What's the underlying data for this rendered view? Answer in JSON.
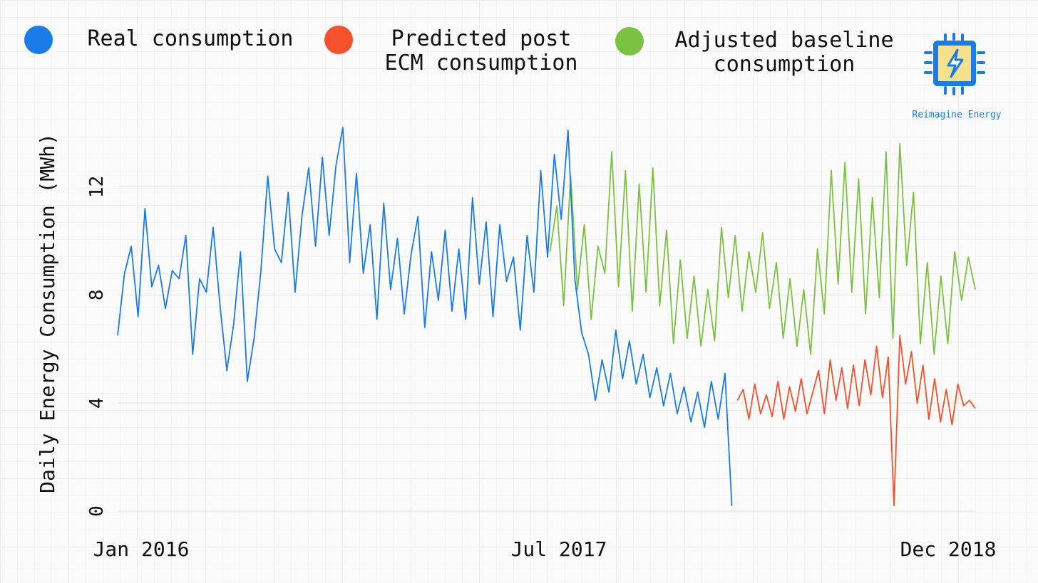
{
  "colors": {
    "real": "#1a7ce6",
    "predicted": "#f4512c",
    "adjusted": "#7cc242",
    "logo_blue": "#1a7ce6",
    "logo_yellow": "#f7e08a"
  },
  "logo": {
    "icon": "lightning-chip-icon",
    "text": "Reimagine Energy"
  },
  "chart_data": {
    "type": "line",
    "title": "",
    "ylabel": "Daily Energy Consumption (MWh)",
    "xlabel": "",
    "ylim": [
      0,
      14.7
    ],
    "yticks": [
      0,
      4,
      8,
      12
    ],
    "xtick_labels": [
      "Jan 2016",
      "Jul 2017",
      "Dec 2018"
    ],
    "grid": true,
    "legend": "top",
    "x_axis": "time (weekly samples, Jan 2016 – Dec 2018)",
    "series": [
      {
        "name": "Real consumption",
        "x_start": "2016-01-01",
        "x_end": "2018-02-16",
        "values": [
          6.5,
          8.8,
          9.8,
          7.2,
          11.2,
          8.3,
          9.1,
          7.5,
          8.9,
          8.6,
          10.2,
          5.8,
          8.6,
          8.1,
          10.5,
          7.6,
          5.2,
          6.9,
          9.6,
          4.8,
          6.4,
          8.9,
          12.4,
          9.7,
          9.2,
          11.8,
          8.1,
          10.9,
          12.7,
          9.8,
          13.1,
          10.2,
          12.8,
          14.2,
          9.2,
          12.5,
          8.8,
          10.6,
          7.1,
          11.4,
          8.2,
          10.1,
          7.3,
          9.5,
          10.9,
          6.8,
          9.6,
          7.8,
          10.4,
          7.4,
          9.7,
          7.1,
          11.6,
          8.4,
          10.7,
          7.2,
          10.6,
          8.5,
          9.4,
          6.7,
          10.2,
          8.1,
          12.6,
          9.4,
          13.2,
          10.8,
          14.1,
          8.6,
          6.6,
          5.8,
          4.1,
          5.6,
          4.4,
          6.7,
          4.9,
          6.3,
          4.7,
          5.8,
          4.2,
          5.3,
          3.9,
          5.1,
          3.6,
          4.6,
          3.3,
          4.4,
          3.1,
          4.8,
          3.4,
          5.1,
          0.2
        ]
      },
      {
        "name": "Predicted post ECM consumption",
        "x_start": "2018-02-23",
        "x_end": "2018-12-21",
        "values": [
          4.1,
          4.5,
          3.4,
          4.7,
          3.6,
          4.3,
          3.5,
          4.8,
          3.4,
          4.6,
          3.7,
          4.9,
          3.6,
          4.4,
          5.2,
          3.6,
          5.6,
          4.1,
          5.3,
          3.8,
          5.4,
          3.9,
          5.6,
          4.3,
          6.1,
          4.2,
          5.7,
          0.2,
          6.5,
          4.7,
          5.9,
          4.0,
          5.4,
          3.4,
          4.9,
          3.3,
          4.5,
          3.2,
          4.7,
          3.9,
          4.1,
          3.8
        ]
      },
      {
        "name": "Adjusted baseline consumption",
        "x_start": "2017-07-01",
        "x_end": "2018-12-21",
        "values": [
          9.6,
          11.3,
          7.6,
          12.4,
          8.2,
          10.6,
          7.1,
          9.8,
          8.8,
          13.3,
          8.3,
          12.6,
          7.4,
          12.1,
          8.1,
          12.7,
          7.6,
          10.4,
          6.2,
          9.3,
          6.4,
          8.7,
          6.1,
          8.2,
          6.3,
          10.5,
          7.9,
          10.2,
          7.4,
          9.6,
          8.1,
          10.3,
          7.5,
          9.2,
          6.4,
          8.6,
          6.1,
          8.2,
          5.8,
          9.7,
          7.3,
          12.6,
          8.4,
          12.9,
          8.1,
          12.3,
          7.3,
          11.6,
          7.9,
          13.3,
          6.4,
          13.6,
          9.1,
          11.8,
          6.2,
          9.2,
          5.8,
          8.7,
          6.2,
          9.6,
          7.8,
          9.4,
          8.2
        ]
      }
    ]
  }
}
